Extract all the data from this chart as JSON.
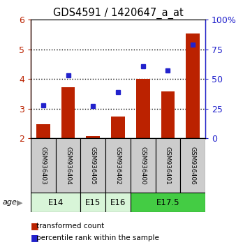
{
  "title": "GDS4591 / 1420647_a_at",
  "samples": [
    "GSM936403",
    "GSM936404",
    "GSM936405",
    "GSM936402",
    "GSM936400",
    "GSM936401",
    "GSM936406"
  ],
  "bar_values": [
    2.47,
    3.72,
    2.07,
    2.73,
    4.0,
    3.58,
    5.53
  ],
  "percentile_values": [
    28,
    53,
    27,
    39,
    61,
    57,
    79
  ],
  "bar_color": "#bb2200",
  "dot_color": "#2222cc",
  "ylim_left": [
    2,
    6
  ],
  "ylim_right": [
    0,
    100
  ],
  "yticks_left": [
    2,
    3,
    4,
    5,
    6
  ],
  "yticks_right": [
    0,
    25,
    50,
    75,
    100
  ],
  "ytick_labels_right": [
    "0",
    "25",
    "50",
    "75",
    "100%"
  ],
  "ytick_labels_left": [
    "2",
    "3",
    "4",
    "5",
    "6"
  ],
  "age_groups": [
    {
      "label": "E14",
      "samples": [
        0,
        1
      ],
      "color": "#d8f5d8"
    },
    {
      "label": "E15",
      "samples": [
        2
      ],
      "color": "#d8f5d8"
    },
    {
      "label": "E16",
      "samples": [
        3
      ],
      "color": "#d8f5d8"
    },
    {
      "label": "E17.5",
      "samples": [
        4,
        5,
        6
      ],
      "color": "#44cc44"
    }
  ],
  "age_label": "age",
  "legend_bar_label": "transformed count",
  "legend_dot_label": "percentile rank within the sample",
  "bar_bottom": 2.0
}
